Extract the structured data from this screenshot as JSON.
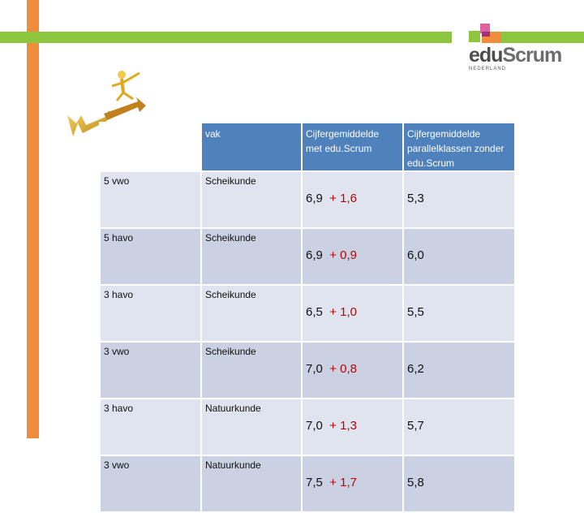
{
  "logo": {
    "text_a": "edu",
    "text_b": "Scrum",
    "sub": "NEDERLAND"
  },
  "table": {
    "headers": [
      "",
      "vak",
      "Cijfergemiddelde met edu.Scrum",
      "Cijfergemiddelde parallelklassen zonder edu.Scrum"
    ],
    "rows": [
      {
        "klas": "5 vwo",
        "vak": "Scheikunde",
        "met": "6,9",
        "plus": "+ 1,6",
        "zonder": "5,3"
      },
      {
        "klas": "5 havo",
        "vak": "Scheikunde",
        "met": "6,9",
        "plus": "+ 0,9",
        "zonder": "6,0"
      },
      {
        "klas": "3 havo",
        "vak": "Scheikunde",
        "met": "6,5",
        "plus": "+ 1,0",
        "zonder": "5,5"
      },
      {
        "klas": "3 vwo",
        "vak": "Scheikunde",
        "met": "7,0",
        "plus": "+ 0,8",
        "zonder": "6,2"
      },
      {
        "klas": "3 havo",
        "vak": "Natuurkunde",
        "met": "7,0",
        "plus": "+ 1,3",
        "zonder": "5,7"
      },
      {
        "klas": "3 vwo",
        "vak": "Natuurkunde",
        "met": "7,5",
        "plus": "+ 1,7",
        "zonder": "5,8"
      }
    ]
  },
  "colors": {
    "orange": "#f08c3c",
    "green": "#8cc63f",
    "header_blue": "#4f81bd",
    "accent_red": "#c00000"
  }
}
